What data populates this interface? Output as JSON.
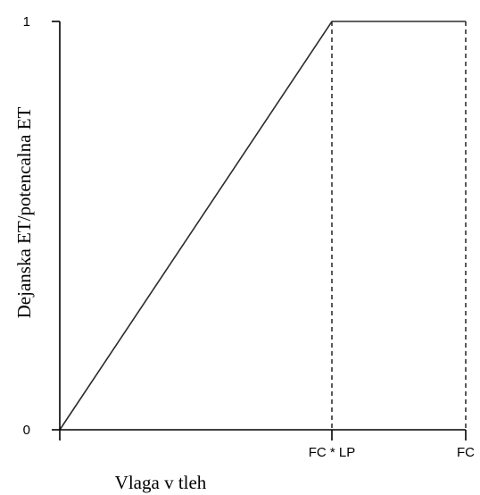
{
  "chart_data": {
    "type": "line",
    "xlabel": "Vlaga v tleh",
    "ylabel": "Dejanska ET/potencalna ET",
    "y_ticks": [
      {
        "value": 0,
        "label": "0"
      },
      {
        "value": 1,
        "label": "1"
      }
    ],
    "x_ticks": [
      {
        "key": "fclp",
        "label": "FC * LP"
      },
      {
        "key": "fc",
        "label": "FC"
      }
    ],
    "series": [
      {
        "points": [
          {
            "x": "0",
            "y": 0
          },
          {
            "x": "FC * LP",
            "y": 1
          },
          {
            "x": "FC",
            "y": 1
          }
        ]
      }
    ],
    "guides": [
      {
        "x": "FC * LP",
        "style": "dashed"
      },
      {
        "x": "FC",
        "style": "dashed"
      }
    ],
    "ylim": [
      0,
      1
    ],
    "grid": false,
    "legend": "none"
  }
}
